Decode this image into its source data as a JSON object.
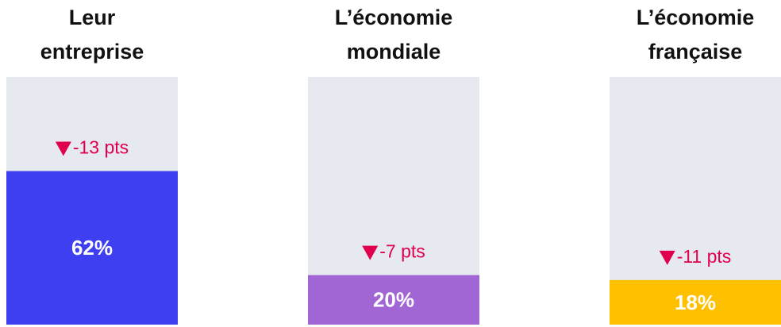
{
  "chart_data": {
    "type": "bar",
    "categories": [
      [
        "Leur",
        "entreprise"
      ],
      [
        "L’économie",
        "mondiale"
      ],
      [
        "L’économie",
        "française"
      ]
    ],
    "values": [
      62,
      20,
      18
    ],
    "value_labels": [
      "62%",
      "20%",
      "18%"
    ],
    "annotations": [
      "-13 pts",
      "-7 pts",
      "-11 pts"
    ],
    "colors": [
      "#3d3ff0",
      "#a265d4",
      "#ffc000"
    ],
    "background_color": "#e6e9f0",
    "annotation_color": "#e0004d",
    "ylim": [
      0,
      100
    ]
  }
}
